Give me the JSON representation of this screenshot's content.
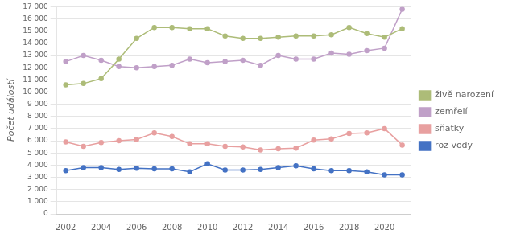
{
  "chart_data": {
    "type": "line",
    "x": [
      2002,
      2003,
      2004,
      2005,
      2006,
      2007,
      2008,
      2009,
      2010,
      2011,
      2012,
      2013,
      2014,
      2015,
      2016,
      2017,
      2018,
      2019,
      2020,
      2021
    ],
    "series": [
      {
        "name": "živě narození",
        "color": "#ADBC78",
        "marker": "circle",
        "values": [
          10600,
          10700,
          11100,
          12700,
          14400,
          15300,
          15300,
          15200,
          15200,
          14600,
          14400,
          14400,
          14500,
          14600,
          14600,
          14700,
          15300,
          14800,
          14500,
          15200
        ]
      },
      {
        "name": "zemřelí",
        "color": "#C0A0C8",
        "marker": "circle",
        "values": [
          12500,
          13000,
          12600,
          12100,
          12000,
          12100,
          12200,
          12700,
          12400,
          12500,
          12600,
          12200,
          13000,
          12700,
          12700,
          13200,
          13100,
          13400,
          13600,
          16800
        ]
      },
      {
        "name": "sňatky",
        "color": "#E8A0A0",
        "marker": "circle",
        "values": [
          5900,
          5550,
          5850,
          6000,
          6100,
          6650,
          6350,
          5750,
          5750,
          5550,
          5500,
          5250,
          5350,
          5400,
          6050,
          6150,
          6600,
          6650,
          7000,
          5650
        ]
      },
      {
        "name": "roz vody",
        "color": "#4472C4",
        "marker": "circle",
        "values": [
          3550,
          3800,
          3800,
          3650,
          3750,
          3700,
          3700,
          3450,
          4100,
          3600,
          3600,
          3650,
          3800,
          3950,
          3700,
          3550,
          3550,
          3450,
          3200,
          3200
        ]
      }
    ],
    "ylabel": "Počet událostí",
    "xlim": [
      2001.5,
      2021.5
    ],
    "xticks": [
      2002,
      2004,
      2006,
      2008,
      2010,
      2012,
      2014,
      2016,
      2018,
      2020
    ],
    "ylim": [
      0,
      17000
    ],
    "yticks": [
      0,
      {
        "value": 1000,
        "label": "1 000"
      },
      {
        "value": 2000,
        "label": "2 000"
      },
      {
        "value": 3000,
        "label": "3 000"
      },
      {
        "value": 4000,
        "label": "4 000"
      },
      {
        "value": 5000,
        "label": "5 000"
      },
      {
        "value": 6000,
        "label": "6 000"
      },
      {
        "value": 7000,
        "label": "7 000"
      },
      {
        "value": 8000,
        "label": "8 000"
      },
      {
        "value": 9000,
        "label": "9 000"
      },
      {
        "value": 10000,
        "label": "10 000"
      },
      {
        "value": 11000,
        "label": "11 000"
      },
      {
        "value": 12000,
        "label": "12 000"
      },
      {
        "value": 13000,
        "label": "13 000"
      },
      {
        "value": 14000,
        "label": "14 000"
      },
      {
        "value": 15000,
        "label": "15 000"
      },
      {
        "value": 16000,
        "label": "16 000"
      },
      {
        "value": 17000,
        "label": "17 000"
      }
    ],
    "grid": true,
    "legend": "right"
  }
}
